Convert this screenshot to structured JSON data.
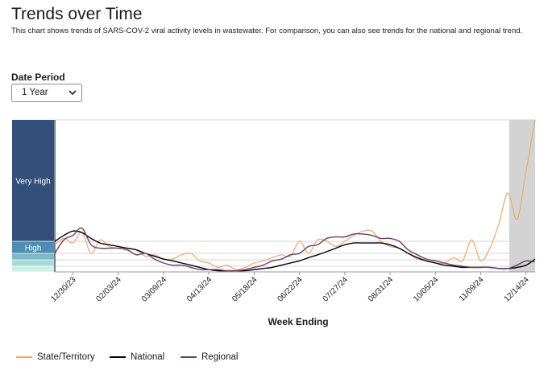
{
  "page": {
    "title": "Trends over Time",
    "subtitle": "This chart shows trends of SARS-COV-2 viral activity levels in wastewater. For comparison, you can also see trends for the national and regional trend."
  },
  "filters": {
    "date_period_label": "Date Period",
    "date_period_value": "1 Year"
  },
  "colors": {
    "state": "#f0a868",
    "national": "#000000",
    "regional": "#6a3d6e",
    "very_high": "#34507a",
    "high": "#4a8fb3",
    "shade": "#d3d3d3"
  },
  "chart_data": {
    "type": "line",
    "xlabel": "Week Ending",
    "ylabel": "",
    "tick_labels": [
      "12/30/23",
      "02/03/24",
      "03/09/24",
      "04/13/24",
      "05/18/24",
      "06/22/24",
      "07/27/24",
      "08/31/24",
      "10/05/24",
      "11/09/24",
      "12/14/24"
    ],
    "x_start": "12/16/23",
    "x_end": "12/21/24",
    "ylim": [
      0,
      10
    ],
    "level_bands": [
      {
        "label": "Very High",
        "from": 1.7,
        "to": 10,
        "color": "#34507a"
      },
      {
        "label": "High",
        "from": 1.0,
        "to": 1.7,
        "color": "#4a8fb3"
      },
      {
        "label": "",
        "from": 0.55,
        "to": 1.0,
        "color": "#7bb9c6"
      },
      {
        "label": "",
        "from": 0.25,
        "to": 0.55,
        "color": "#a8d9d6"
      },
      {
        "label": "",
        "from": 0.0,
        "to": 0.25,
        "color": "#cdeee6"
      }
    ],
    "shaded_region": {
      "from": "12/01/24",
      "to": "12/21/24"
    },
    "series": [
      {
        "name": "State/Territory",
        "color": "#f0a868",
        "points": [
          [
            "12/16/23",
            1.5
          ],
          [
            "12/23/23",
            1.9
          ],
          [
            "12/30/23",
            1.6
          ],
          [
            "01/06/24",
            2.3
          ],
          [
            "01/13/24",
            1.0
          ],
          [
            "01/20/24",
            1.8
          ],
          [
            "01/27/24",
            1.4
          ],
          [
            "02/03/24",
            1.3
          ],
          [
            "02/10/24",
            1.3
          ],
          [
            "02/17/24",
            1.2
          ],
          [
            "02/24/24",
            0.8
          ],
          [
            "03/02/24",
            0.9
          ],
          [
            "03/09/24",
            0.6
          ],
          [
            "03/16/24",
            0.6
          ],
          [
            "03/23/24",
            0.9
          ],
          [
            "03/30/24",
            1.0
          ],
          [
            "04/06/24",
            0.5
          ],
          [
            "04/13/24",
            0.4
          ],
          [
            "04/20/24",
            0.2
          ],
          [
            "04/27/24",
            0.3
          ],
          [
            "05/04/24",
            0.1
          ],
          [
            "05/11/24",
            0.2
          ],
          [
            "05/18/24",
            0.4
          ],
          [
            "05/25/24",
            0.5
          ],
          [
            "06/01/24",
            0.7
          ],
          [
            "06/08/24",
            0.9
          ],
          [
            "06/15/24",
            0.8
          ],
          [
            "06/22/24",
            1.7
          ],
          [
            "06/29/24",
            1.0
          ],
          [
            "07/06/24",
            1.8
          ],
          [
            "07/13/24",
            1.7
          ],
          [
            "07/20/24",
            1.4
          ],
          [
            "07/27/24",
            1.7
          ],
          [
            "08/03/24",
            2.1
          ],
          [
            "08/10/24",
            2.4
          ],
          [
            "08/17/24",
            2.4
          ],
          [
            "08/24/24",
            1.7
          ],
          [
            "08/31/24",
            1.4
          ],
          [
            "09/07/24",
            1.3
          ],
          [
            "09/14/24",
            1.0
          ],
          [
            "09/21/24",
            0.6
          ],
          [
            "09/28/24",
            0.5
          ],
          [
            "10/05/24",
            0.4
          ],
          [
            "10/12/24",
            0.4
          ],
          [
            "10/19/24",
            0.7
          ],
          [
            "10/26/24",
            0.5
          ],
          [
            "11/02/24",
            1.8
          ],
          [
            "11/09/24",
            0.5
          ],
          [
            "11/16/24",
            1.3
          ],
          [
            "11/23/24",
            2.9
          ],
          [
            "11/30/24",
            5.0
          ],
          [
            "12/07/24",
            3.2
          ],
          [
            "12/14/24",
            6.5
          ],
          [
            "12/21/24",
            10.0
          ]
        ]
      },
      {
        "name": "National",
        "color": "#000000",
        "points": [
          [
            "12/16/23",
            1.7
          ],
          [
            "12/23/23",
            2.1
          ],
          [
            "12/30/23",
            2.4
          ],
          [
            "01/06/24",
            2.3
          ],
          [
            "01/13/24",
            1.9
          ],
          [
            "01/20/24",
            1.6
          ],
          [
            "01/27/24",
            1.5
          ],
          [
            "02/03/24",
            1.4
          ],
          [
            "02/10/24",
            1.3
          ],
          [
            "02/17/24",
            1.2
          ],
          [
            "02/24/24",
            1.0
          ],
          [
            "03/02/24",
            0.8
          ],
          [
            "03/09/24",
            0.6
          ],
          [
            "03/16/24",
            0.5
          ],
          [
            "03/23/24",
            0.4
          ],
          [
            "03/30/24",
            0.3
          ],
          [
            "04/06/24",
            0.2
          ],
          [
            "04/13/24",
            0.1
          ],
          [
            "04/20/24",
            0.05
          ],
          [
            "04/27/24",
            0.05
          ],
          [
            "05/04/24",
            0.05
          ],
          [
            "05/11/24",
            0.05
          ],
          [
            "05/18/24",
            0.1
          ],
          [
            "05/25/24",
            0.15
          ],
          [
            "06/01/24",
            0.2
          ],
          [
            "06/08/24",
            0.3
          ],
          [
            "06/15/24",
            0.4
          ],
          [
            "06/22/24",
            0.5
          ],
          [
            "06/29/24",
            0.7
          ],
          [
            "07/06/24",
            0.9
          ],
          [
            "07/13/24",
            1.1
          ],
          [
            "07/20/24",
            1.3
          ],
          [
            "07/27/24",
            1.5
          ],
          [
            "08/03/24",
            1.6
          ],
          [
            "08/10/24",
            1.6
          ],
          [
            "08/17/24",
            1.6
          ],
          [
            "08/24/24",
            1.6
          ],
          [
            "08/31/24",
            1.5
          ],
          [
            "09/07/24",
            1.3
          ],
          [
            "09/14/24",
            1.0
          ],
          [
            "09/21/24",
            0.7
          ],
          [
            "09/28/24",
            0.5
          ],
          [
            "10/05/24",
            0.4
          ],
          [
            "10/12/24",
            0.3
          ],
          [
            "10/19/24",
            0.25
          ],
          [
            "10/26/24",
            0.2
          ],
          [
            "11/02/24",
            0.2
          ],
          [
            "11/09/24",
            0.2
          ],
          [
            "11/16/24",
            0.2
          ],
          [
            "11/23/24",
            0.15
          ],
          [
            "11/30/24",
            0.15
          ],
          [
            "12/07/24",
            0.2
          ],
          [
            "12/14/24",
            0.3
          ],
          [
            "12/21/24",
            0.6
          ]
        ]
      },
      {
        "name": "Regional",
        "color": "#6a3d6e",
        "points": [
          [
            "12/16/23",
            1.0
          ],
          [
            "12/23/23",
            1.8
          ],
          [
            "12/30/23",
            2.1
          ],
          [
            "01/06/24",
            2.6
          ],
          [
            "01/13/24",
            1.5
          ],
          [
            "01/20/24",
            1.3
          ],
          [
            "01/27/24",
            1.3
          ],
          [
            "02/03/24",
            1.3
          ],
          [
            "02/10/24",
            1.2
          ],
          [
            "02/17/24",
            0.9
          ],
          [
            "02/24/24",
            1.0
          ],
          [
            "03/02/24",
            0.6
          ],
          [
            "03/09/24",
            0.4
          ],
          [
            "03/16/24",
            0.3
          ],
          [
            "03/23/24",
            0.3
          ],
          [
            "03/30/24",
            0.2
          ],
          [
            "04/06/24",
            0.1
          ],
          [
            "04/13/24",
            0.1
          ],
          [
            "04/20/24",
            0.1
          ],
          [
            "04/27/24",
            0.05
          ],
          [
            "05/04/24",
            0.05
          ],
          [
            "05/11/24",
            0.1
          ],
          [
            "05/18/24",
            0.2
          ],
          [
            "05/25/24",
            0.3
          ],
          [
            "06/01/24",
            0.5
          ],
          [
            "06/08/24",
            0.6
          ],
          [
            "06/15/24",
            0.9
          ],
          [
            "06/22/24",
            1.0
          ],
          [
            "06/29/24",
            1.4
          ],
          [
            "07/06/24",
            1.5
          ],
          [
            "07/13/24",
            1.9
          ],
          [
            "07/20/24",
            2.0
          ],
          [
            "07/27/24",
            2.0
          ],
          [
            "08/03/24",
            2.2
          ],
          [
            "08/10/24",
            2.2
          ],
          [
            "08/17/24",
            2.1
          ],
          [
            "08/24/24",
            1.9
          ],
          [
            "08/31/24",
            1.9
          ],
          [
            "09/07/24",
            1.7
          ],
          [
            "09/14/24",
            1.2
          ],
          [
            "09/21/24",
            0.9
          ],
          [
            "09/28/24",
            0.6
          ],
          [
            "10/05/24",
            0.5
          ],
          [
            "10/12/24",
            0.4
          ],
          [
            "10/19/24",
            0.3
          ],
          [
            "10/26/24",
            0.25
          ],
          [
            "11/02/24",
            0.2
          ],
          [
            "11/09/24",
            0.2
          ],
          [
            "11/16/24",
            0.2
          ],
          [
            "11/23/24",
            0.15
          ],
          [
            "11/30/24",
            0.15
          ],
          [
            "12/07/24",
            0.3
          ],
          [
            "12/14/24",
            0.5
          ],
          [
            "12/21/24",
            0.45
          ]
        ]
      }
    ]
  }
}
